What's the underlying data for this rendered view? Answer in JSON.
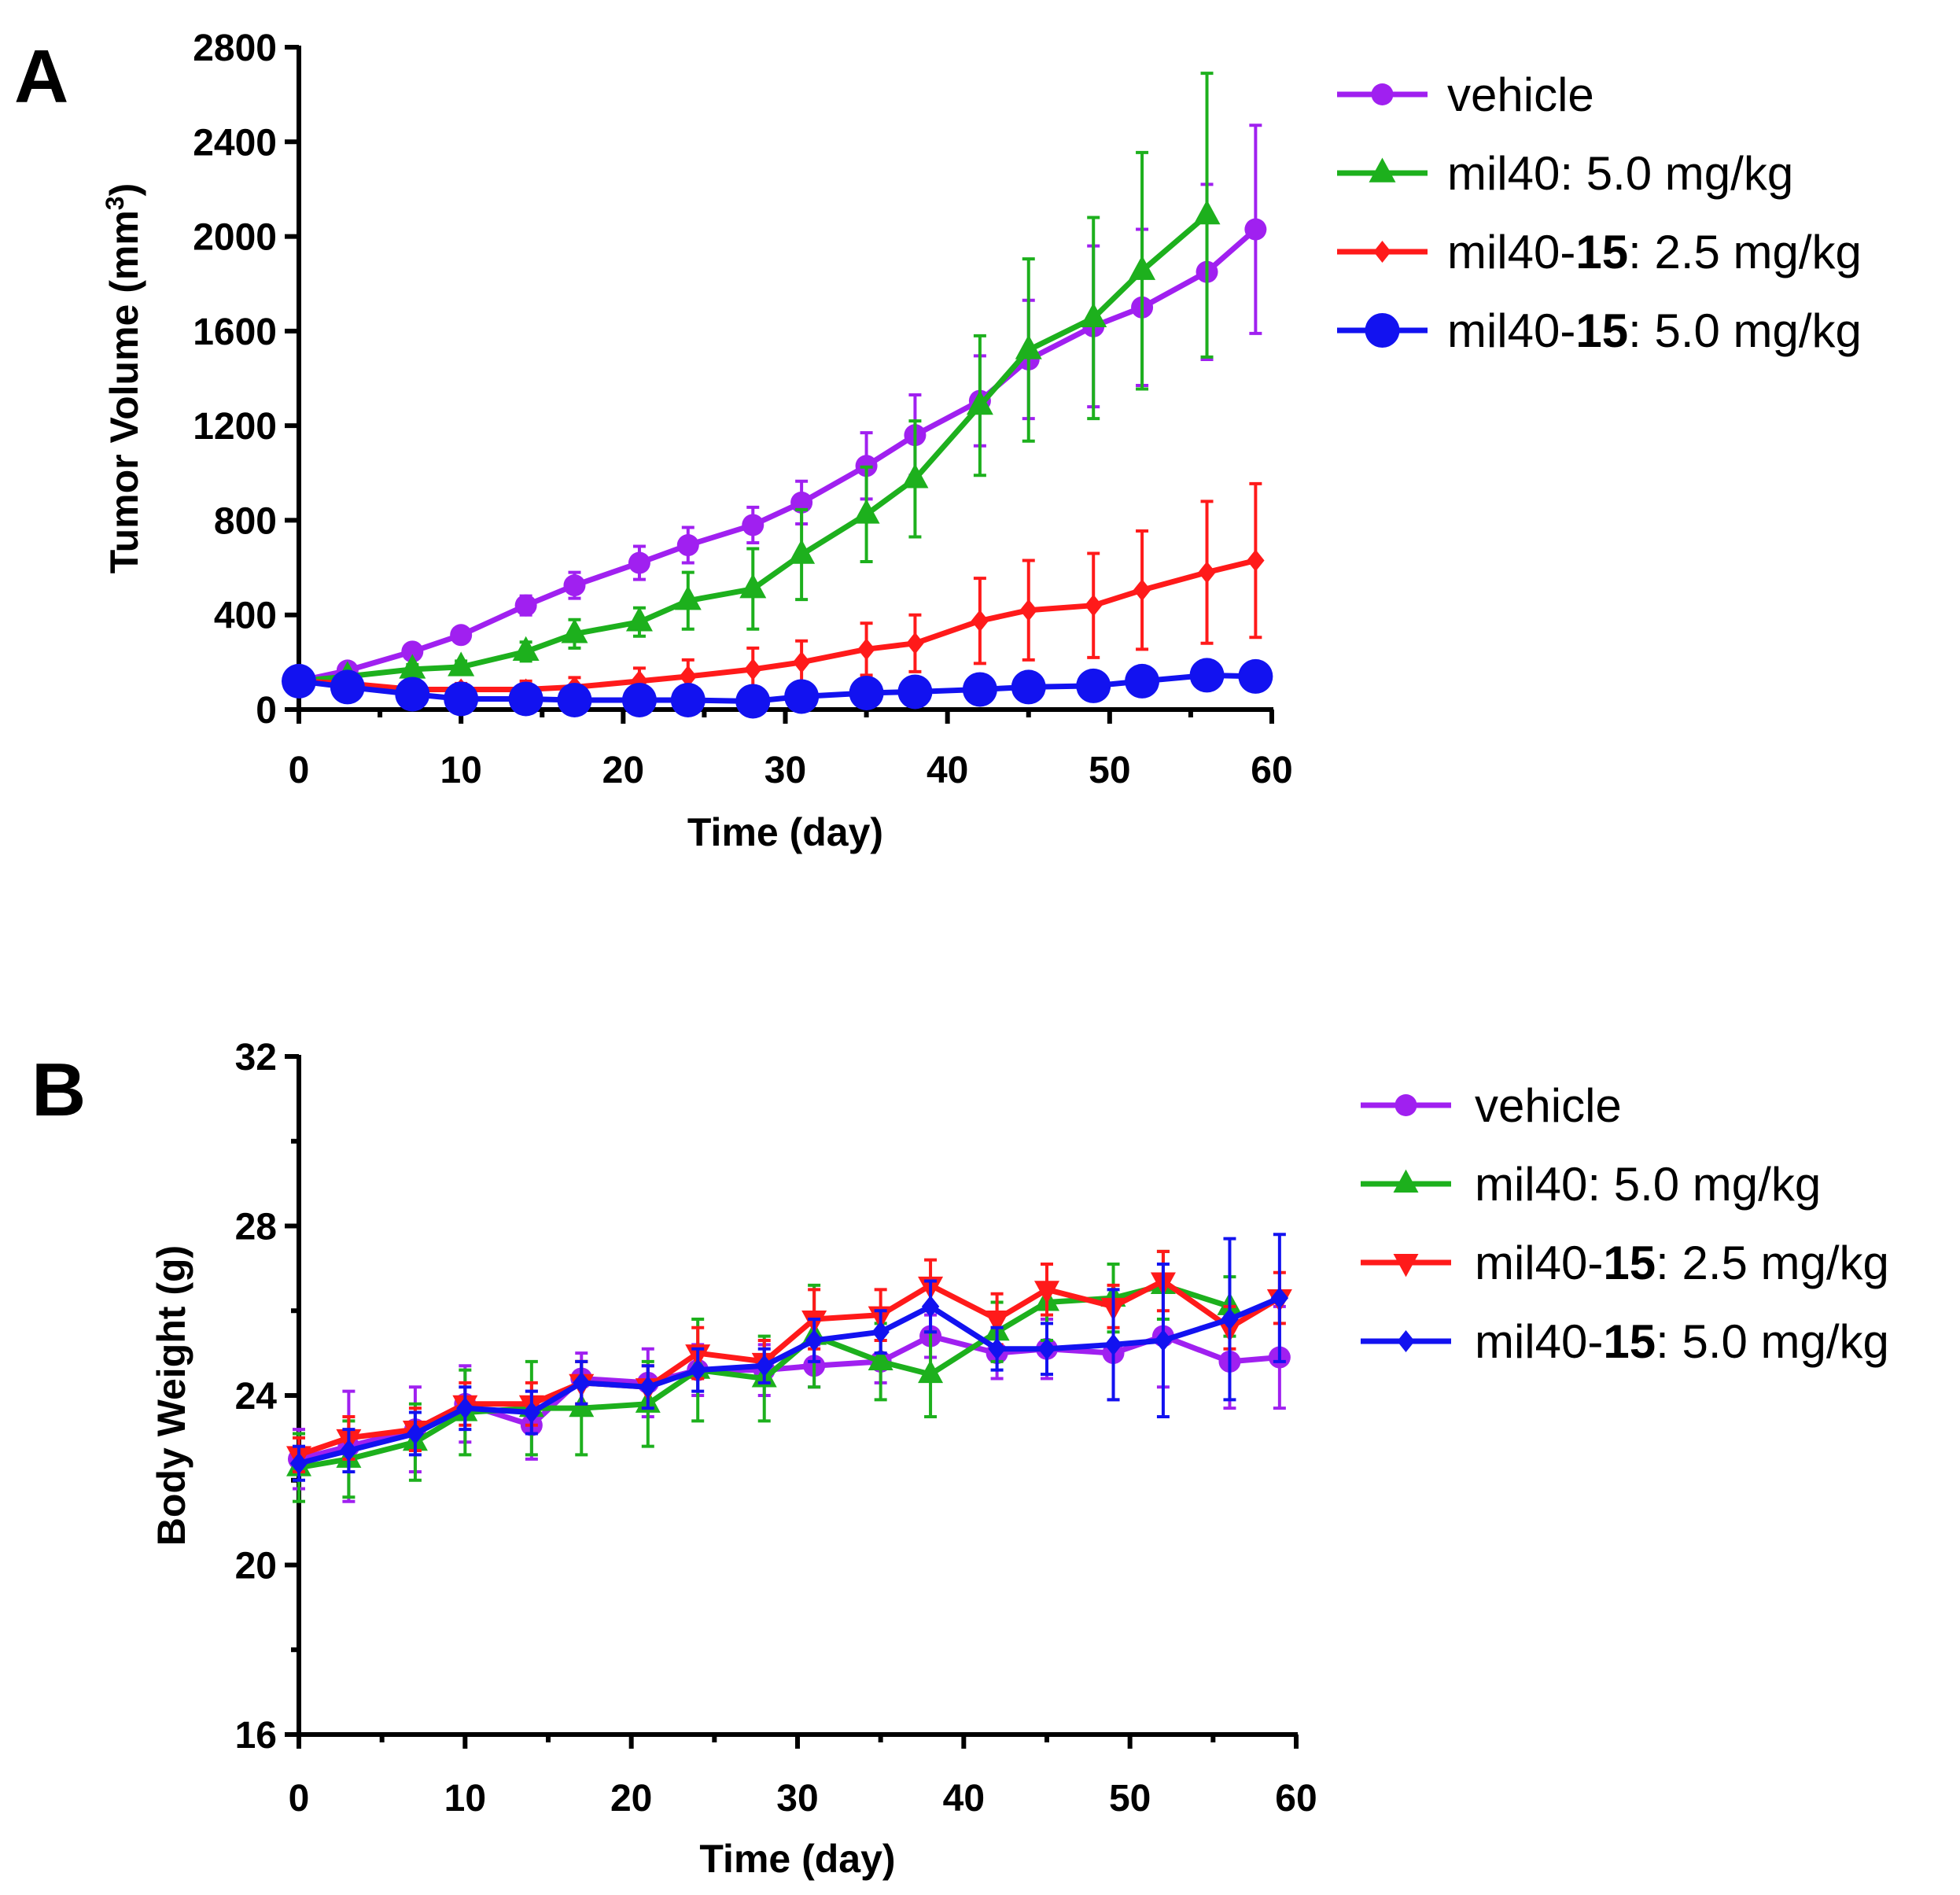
{
  "chart_data": [
    {
      "panel": "A",
      "type": "line",
      "xlabel": "Time (day)",
      "ylabel": "Tumor Volume (mm",
      "ylabel_sup": "3",
      "ylabel_end": ")",
      "xlim": [
        0,
        60
      ],
      "ylim": [
        0,
        2800
      ],
      "xticks": [
        0,
        10,
        20,
        30,
        40,
        50,
        60
      ],
      "xtick_labels": [
        "0",
        "10",
        "20",
        "30",
        "40",
        "50",
        "60"
      ],
      "yticks": [
        0,
        400,
        800,
        1200,
        1600,
        2000,
        2400,
        2800
      ],
      "ytick_labels": [
        "0",
        "400",
        "800",
        "1200",
        "1600",
        "2000",
        "2400",
        "2800"
      ],
      "legend_position": "right",
      "series": [
        {
          "name": "vehicle",
          "color": "#a020f0",
          "marker": "circle",
          "x": [
            0,
            3,
            7,
            10,
            14,
            17,
            21,
            24,
            28,
            31,
            35,
            38,
            42,
            45,
            49,
            52,
            56,
            59
          ],
          "y": [
            120,
            165,
            245,
            315,
            440,
            525,
            620,
            695,
            780,
            875,
            1030,
            1160,
            1305,
            1480,
            1620,
            1700,
            1850,
            2030
          ],
          "err": [
            10,
            15,
            25,
            30,
            40,
            55,
            70,
            75,
            75,
            90,
            140,
            170,
            190,
            250,
            340,
            330,
            370,
            440
          ]
        },
        {
          "name_parts": [
            "mil40: 5.0 mg/kg"
          ],
          "name": "mil40: 5.0 mg/kg",
          "color": "#1db01d",
          "marker": "triangle",
          "x": [
            0,
            3,
            7,
            10,
            14,
            17,
            21,
            24,
            28,
            31,
            35,
            38,
            42,
            45,
            49,
            52,
            56,
            59
          ],
          "y": [
            120,
            140,
            170,
            180,
            245,
            320,
            370,
            460,
            510,
            655,
            825,
            975,
            1285,
            1520,
            1655,
            1855,
            2090,
            null
          ],
          "err": [
            10,
            15,
            20,
            25,
            40,
            60,
            60,
            120,
            170,
            190,
            200,
            245,
            295,
            385,
            425,
            500,
            600,
            null
          ]
        },
        {
          "name_parts": [
            "mil40-",
            "15",
            ": 2.5 mg/kg"
          ],
          "name": "mil40-15: 2.5 mg/kg",
          "color": "#ff1a1a",
          "marker": "diamond",
          "x": [
            0,
            3,
            7,
            10,
            14,
            17,
            21,
            24,
            28,
            31,
            35,
            38,
            42,
            45,
            49,
            52,
            56,
            59
          ],
          "y": [
            120,
            110,
            85,
            85,
            85,
            95,
            120,
            140,
            170,
            200,
            255,
            280,
            375,
            420,
            440,
            505,
            580,
            630
          ],
          "err": [
            10,
            15,
            20,
            25,
            35,
            40,
            55,
            70,
            90,
            90,
            110,
            120,
            180,
            210,
            220,
            250,
            300,
            325
          ]
        },
        {
          "name_parts": [
            "mil40-",
            "15",
            ": 5.0 mg/kg"
          ],
          "name": "mil40-15: 5.0 mg/kg",
          "color": "#1212f0",
          "marker": "circle-large",
          "x": [
            0,
            3,
            7,
            10,
            14,
            17,
            21,
            24,
            28,
            31,
            35,
            38,
            42,
            45,
            49,
            52,
            56,
            59
          ],
          "y": [
            120,
            95,
            65,
            45,
            45,
            40,
            40,
            40,
            35,
            55,
            70,
            75,
            85,
            95,
            100,
            120,
            145,
            140
          ],
          "err": [
            8,
            10,
            12,
            10,
            10,
            10,
            10,
            10,
            10,
            12,
            15,
            15,
            20,
            20,
            20,
            25,
            30,
            30
          ]
        }
      ]
    },
    {
      "panel": "B",
      "type": "line",
      "xlabel": "Time (day)",
      "ylabel": "Body Weight (g)",
      "xlim": [
        0,
        60
      ],
      "ylim": [
        16,
        32
      ],
      "xticks": [
        0,
        10,
        20,
        30,
        40,
        50,
        60
      ],
      "xtick_labels": [
        "0",
        "10",
        "20",
        "30",
        "40",
        "50",
        "60"
      ],
      "yticks": [
        16,
        20,
        24,
        28,
        32
      ],
      "ytick_labels": [
        "16",
        "20",
        "24",
        "28",
        "32"
      ],
      "legend_position": "right",
      "series": [
        {
          "name": "vehicle",
          "color": "#a020f0",
          "marker": "circle",
          "x": [
            0,
            3,
            7,
            10,
            14,
            17,
            21,
            24,
            28,
            31,
            35,
            38,
            42,
            45,
            49,
            52,
            56,
            59
          ],
          "y": [
            22.5,
            22.8,
            23.2,
            23.8,
            23.3,
            24.4,
            24.3,
            24.6,
            24.6,
            24.7,
            24.8,
            25.4,
            25.0,
            25.1,
            25.0,
            25.4,
            24.8,
            24.9
          ],
          "err": [
            0.7,
            1.3,
            1.0,
            0.9,
            0.8,
            0.6,
            0.8,
            0.6,
            0.6,
            0.5,
            0.5,
            0.5,
            0.6,
            0.7,
            1.1,
            1.2,
            1.1,
            1.2
          ]
        },
        {
          "name_parts": [
            "mil40: 5.0 mg/kg"
          ],
          "name": "mil40: 5.0 mg/kg",
          "color": "#1db01d",
          "marker": "triangle",
          "x": [
            0,
            3,
            7,
            10,
            14,
            17,
            21,
            24,
            28,
            31,
            35,
            38,
            42,
            45,
            49,
            52,
            56,
            59
          ],
          "y": [
            22.3,
            22.5,
            22.9,
            23.6,
            23.7,
            23.7,
            23.8,
            24.6,
            24.4,
            25.4,
            24.8,
            24.5,
            25.5,
            26.2,
            26.3,
            26.6,
            26.1,
            null
          ],
          "err": [
            0.8,
            0.9,
            0.9,
            1.0,
            1.1,
            1.1,
            1.0,
            1.2,
            1.0,
            1.2,
            0.9,
            1.0,
            0.7,
            0.9,
            0.8,
            0.8,
            0.7,
            null
          ]
        },
        {
          "name_parts": [
            "mil40-",
            "15",
            ": 2.5 mg/kg"
          ],
          "name": "mil40-15: 2.5 mg/kg",
          "color": "#ff1a1a",
          "marker": "triangle-down",
          "x": [
            0,
            3,
            7,
            10,
            14,
            17,
            21,
            24,
            28,
            31,
            35,
            38,
            42,
            45,
            49,
            52,
            56,
            59
          ],
          "y": [
            22.6,
            23.0,
            23.2,
            23.8,
            23.8,
            24.3,
            24.2,
            25.0,
            24.8,
            25.8,
            25.9,
            26.6,
            25.8,
            26.5,
            26.1,
            26.7,
            25.6,
            26.3
          ],
          "err": [
            0.4,
            0.5,
            0.5,
            0.5,
            0.5,
            0.5,
            0.5,
            0.6,
            0.5,
            0.7,
            0.6,
            0.6,
            0.6,
            0.6,
            0.5,
            0.7,
            0.5,
            0.6
          ]
        },
        {
          "name_parts": [
            "mil40-",
            "15",
            ": 5.0 mg/kg"
          ],
          "name": "mil40-15: 5.0 mg/kg",
          "color": "#1212f0",
          "marker": "diamond",
          "x": [
            0,
            3,
            7,
            10,
            14,
            17,
            21,
            24,
            28,
            31,
            35,
            38,
            42,
            45,
            49,
            52,
            56,
            59
          ],
          "y": [
            22.4,
            22.7,
            23.1,
            23.7,
            23.6,
            24.3,
            24.2,
            24.6,
            24.7,
            25.3,
            25.5,
            26.1,
            25.1,
            25.1,
            25.2,
            25.3,
            25.8,
            26.3
          ],
          "err": [
            0.4,
            0.5,
            0.5,
            0.5,
            0.5,
            0.5,
            0.5,
            0.5,
            0.4,
            0.5,
            0.5,
            0.6,
            0.5,
            0.6,
            1.3,
            1.8,
            1.9,
            1.5
          ]
        }
      ]
    }
  ]
}
